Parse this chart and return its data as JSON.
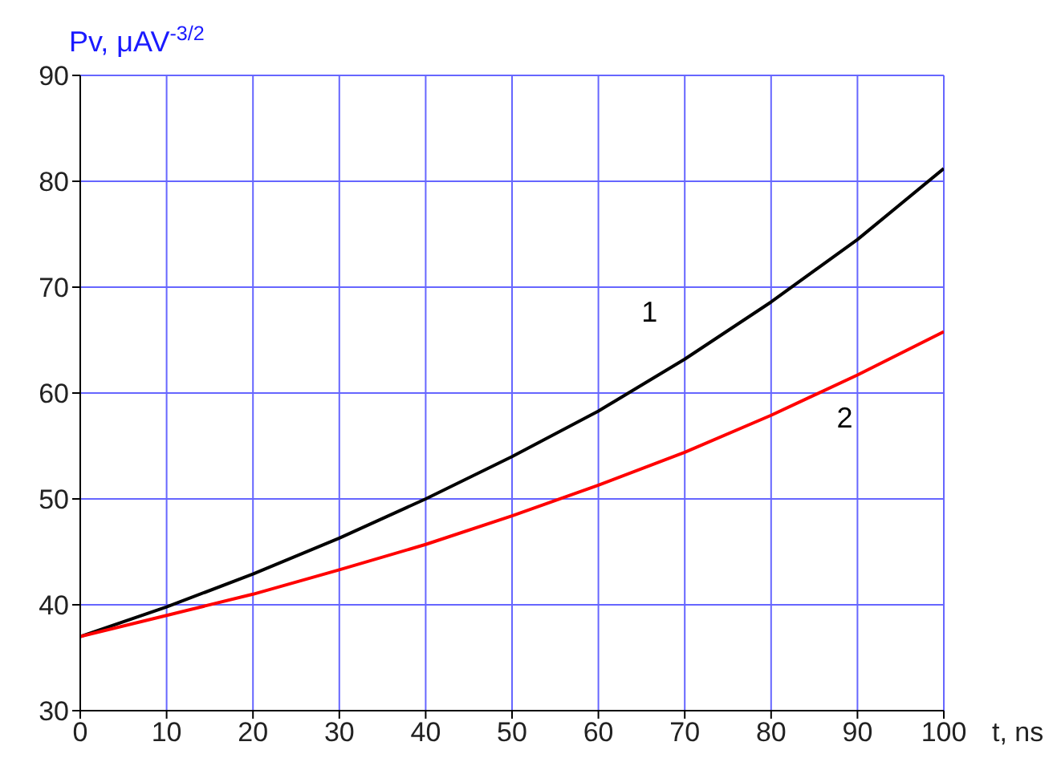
{
  "chart_data": {
    "type": "line",
    "xlabel": "t, ns",
    "ylabel": "Pv, μAV$^{-3/2}$",
    "x": [
      0,
      10,
      20,
      30,
      40,
      50,
      60,
      70,
      80,
      90,
      100
    ],
    "series": [
      {
        "color": "#000000",
        "values": [
          37,
          39.8,
          42.9,
          46.3,
          50.0,
          54.0,
          58.3,
          63.2,
          68.6,
          74.5,
          81.2
        ]
      },
      {
        "color": "#ff0000",
        "values": [
          37,
          39.0,
          41.0,
          43.3,
          45.7,
          48.4,
          51.3,
          54.4,
          57.9,
          61.7,
          65.8
        ]
      }
    ],
    "annotations": [
      "1",
      "2"
    ],
    "xlim": [
      0,
      100
    ],
    "xticks": [
      0,
      10,
      20,
      30,
      40,
      50,
      60,
      70,
      80,
      90,
      100
    ],
    "ylim": [
      30,
      90
    ],
    "yticks": [
      30,
      40,
      50,
      60,
      70,
      80,
      90
    ],
    "grid": true,
    "marker": "none",
    "line_style": "solid"
  }
}
